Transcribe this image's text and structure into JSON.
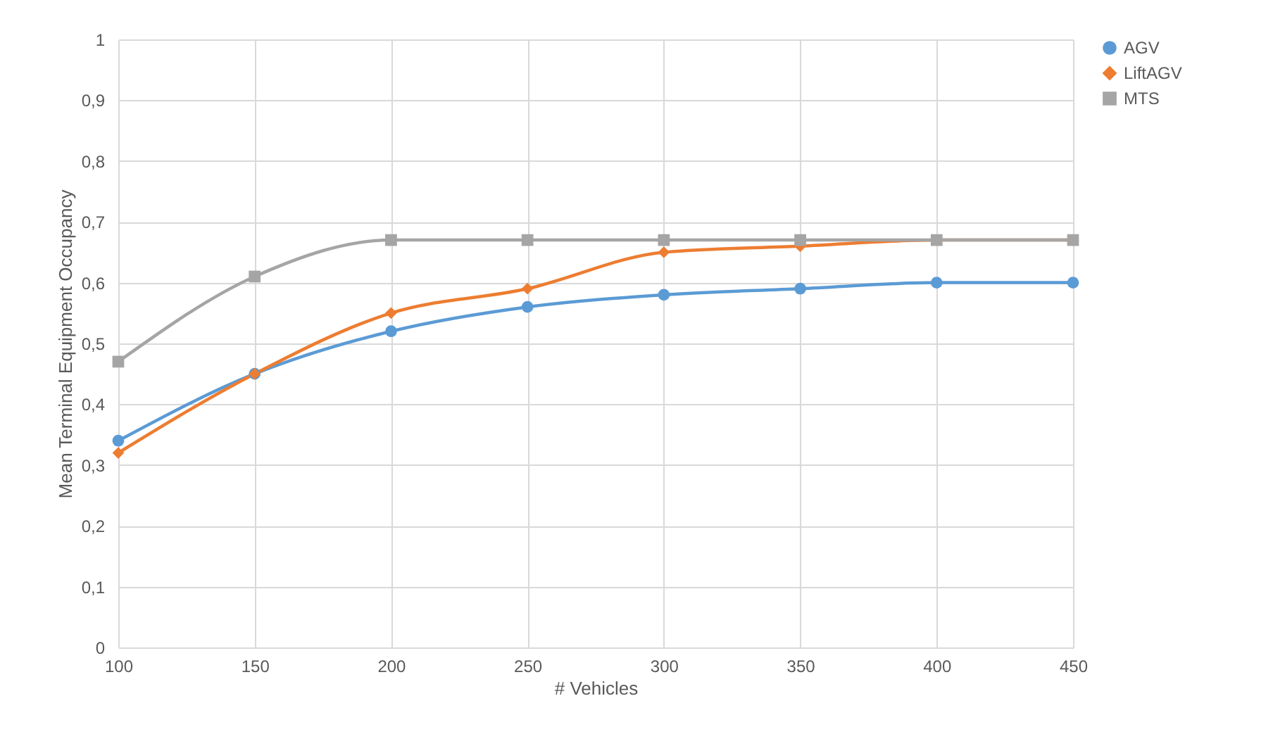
{
  "chart_data": {
    "type": "line",
    "xlabel": "# Vehicles",
    "ylabel": "Mean Terminal Equipment Occupancy",
    "x": [
      100,
      150,
      200,
      250,
      300,
      350,
      400,
      450
    ],
    "series": [
      {
        "name": "AGV",
        "color": "#5b9bd5",
        "marker": "circle",
        "values": [
          0.34,
          0.45,
          0.52,
          0.56,
          0.58,
          0.59,
          0.6,
          0.6
        ]
      },
      {
        "name": "LiftAGV",
        "color": "#ed7d31",
        "marker": "diamond",
        "values": [
          0.32,
          0.45,
          0.55,
          0.59,
          0.65,
          0.66,
          0.67,
          0.67
        ]
      },
      {
        "name": "MTS",
        "color": "#a5a5a5",
        "marker": "square",
        "values": [
          0.47,
          0.61,
          0.67,
          0.67,
          0.67,
          0.67,
          0.67,
          0.67
        ]
      }
    ],
    "xlim": [
      100,
      450
    ],
    "xticks": [
      100,
      150,
      200,
      250,
      300,
      350,
      400,
      450
    ],
    "ylim": [
      0,
      1
    ],
    "yticks": [
      0,
      {
        "value": 0.1,
        "label": "0,1"
      },
      {
        "value": 0.2,
        "label": "0,2"
      },
      {
        "value": 0.3,
        "label": "0,3"
      },
      {
        "value": 0.4,
        "label": "0,4"
      },
      {
        "value": 0.5,
        "label": "0,5"
      },
      {
        "value": 0.6,
        "label": "0,6"
      },
      {
        "value": 0.7,
        "label": "0,7"
      },
      {
        "value": 0.8,
        "label": "0,8"
      },
      {
        "value": 0.9,
        "label": "0,9"
      },
      1
    ],
    "grid": true,
    "legend": "right",
    "line_style": "solid"
  }
}
